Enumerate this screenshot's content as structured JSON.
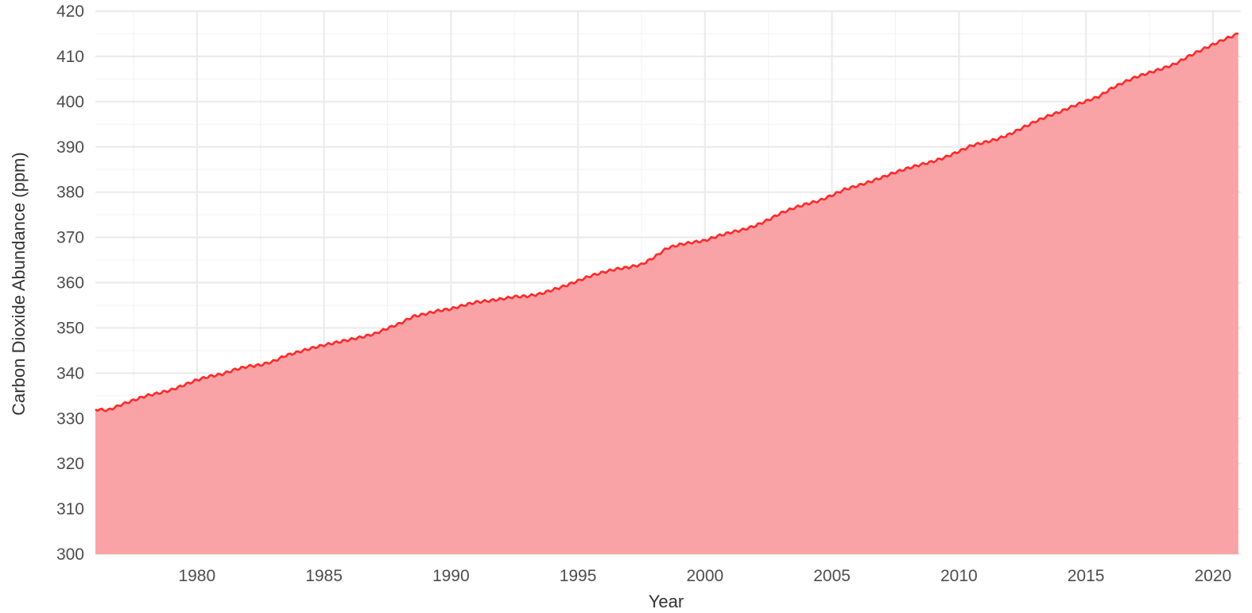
{
  "chart_data": {
    "type": "area",
    "title": "",
    "xlabel": "Year",
    "ylabel": "Carbon Dioxide Abundance (ppm)",
    "xlim": [
      1976,
      2021.1
    ],
    "ylim": [
      300,
      420
    ],
    "x_ticks": [
      1980,
      1985,
      1990,
      1995,
      2000,
      2005,
      2010,
      2015,
      2020
    ],
    "y_ticks": [
      300,
      310,
      320,
      330,
      340,
      350,
      360,
      370,
      380,
      390,
      400,
      410,
      420
    ],
    "grid": true,
    "legend": "none",
    "colors": {
      "line": "#ff2a2a",
      "fill": "#f9a3a7",
      "background": "#ffffff",
      "grid": "#ebebeb"
    },
    "series": [
      {
        "x": [
          1976.0,
          1976.5,
          1977.0,
          1977.5,
          1978.0,
          1978.5,
          1979.0,
          1979.5,
          1980.0,
          1980.5,
          1981.0,
          1981.5,
          1982.0,
          1982.5,
          1983.0,
          1983.5,
          1984.0,
          1984.5,
          1985.0,
          1985.5,
          1986.0,
          1986.5,
          1987.0,
          1987.5,
          1988.0,
          1988.5,
          1989.0,
          1989.5,
          1990.0,
          1990.5,
          1991.0,
          1991.5,
          1992.0,
          1992.5,
          1993.0,
          1993.5,
          1994.0,
          1994.5,
          1995.0,
          1995.5,
          1996.0,
          1996.5,
          1997.0,
          1997.5,
          1998.0,
          1998.5,
          1999.0,
          1999.5,
          2000.0,
          2000.5,
          2001.0,
          2001.5,
          2002.0,
          2002.5,
          2003.0,
          2003.5,
          2004.0,
          2004.5,
          2005.0,
          2005.5,
          2006.0,
          2006.5,
          2007.0,
          2007.5,
          2008.0,
          2008.5,
          2009.0,
          2009.5,
          2010.0,
          2010.5,
          2011.0,
          2011.5,
          2012.0,
          2012.5,
          2013.0,
          2013.5,
          2014.0,
          2014.5,
          2015.0,
          2015.5,
          2016.0,
          2016.5,
          2017.0,
          2017.5,
          2018.0,
          2018.5,
          2019.0,
          2019.5,
          2020.0,
          2020.5,
          2021.0
        ],
        "y": [
          332.0,
          331.8,
          333.0,
          334.0,
          335.0,
          335.6,
          336.3,
          337.4,
          338.5,
          339.3,
          339.8,
          340.8,
          341.5,
          341.8,
          342.6,
          343.9,
          344.7,
          345.5,
          346.2,
          346.8,
          347.4,
          348.0,
          348.7,
          349.9,
          351.0,
          352.5,
          353.1,
          353.8,
          354.2,
          355.0,
          355.7,
          356.0,
          356.4,
          356.9,
          357.0,
          357.5,
          358.4,
          359.3,
          360.4,
          361.5,
          362.3,
          363.0,
          363.4,
          364.0,
          365.6,
          367.6,
          368.4,
          368.9,
          369.3,
          370.3,
          371.1,
          371.7,
          372.6,
          373.9,
          375.4,
          376.5,
          377.4,
          378.1,
          379.3,
          380.6,
          381.4,
          382.3,
          383.3,
          384.4,
          385.3,
          386.1,
          386.8,
          387.8,
          389.0,
          390.3,
          391.0,
          391.7,
          392.8,
          394.2,
          395.6,
          396.8,
          397.8,
          399.0,
          400.1,
          401.1,
          402.9,
          404.3,
          405.5,
          406.4,
          407.3,
          408.3,
          409.9,
          411.3,
          412.6,
          413.9,
          415.0
        ]
      }
    ]
  }
}
